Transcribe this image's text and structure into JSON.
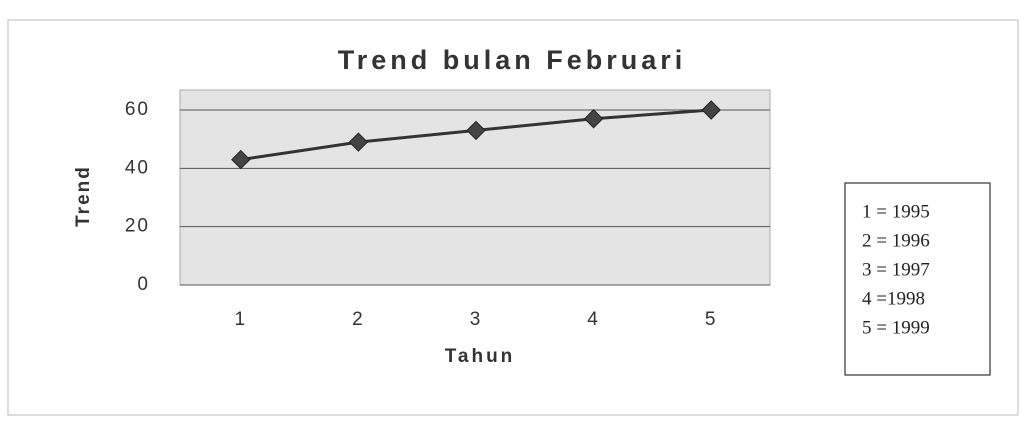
{
  "chart_data": {
    "type": "line",
    "title": "Trend bulan Februari",
    "x_label": "Tahun",
    "y_label": "Trend",
    "categories": [
      "1",
      "2",
      "3",
      "4",
      "5"
    ],
    "values": [
      43,
      49,
      53,
      57,
      60
    ],
    "color": "#333333",
    "ylim": [
      0,
      60
    ],
    "yticks": [
      0,
      20,
      40,
      60
    ],
    "grid": true,
    "annotations": [
      "1 = 1995",
      "2 = 1996",
      "3 = 1997",
      "4 =1998",
      "5 = 1999"
    ]
  }
}
